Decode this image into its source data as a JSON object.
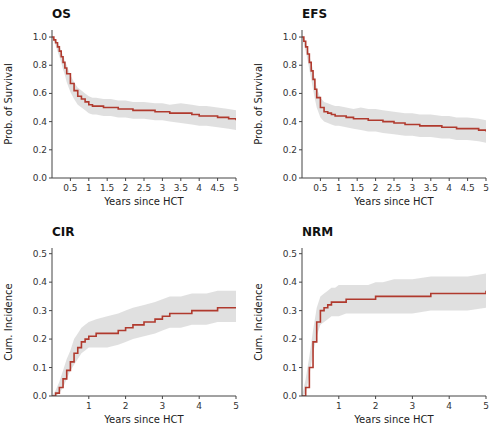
{
  "chart_data": [
    {
      "type": "step",
      "title": "OS",
      "xlabel": "Years since HCT",
      "ylabel": "Prob. of Survival",
      "color": "#b03a2e",
      "grid": false,
      "xlim": [
        0,
        5
      ],
      "ylim": [
        0.0,
        1.05
      ],
      "xticks": [
        0.5,
        1,
        1.5,
        2,
        2.5,
        3,
        3.5,
        4,
        4.5,
        5
      ],
      "yticks": [
        {
          "value": 0.0,
          "label": "0.0"
        },
        0.2,
        0.4,
        0.6,
        0.8,
        {
          "value": 1.0,
          "label": "1.0"
        }
      ],
      "x": [
        0,
        0.05,
        0.1,
        0.15,
        0.2,
        0.25,
        0.3,
        0.35,
        0.4,
        0.5,
        0.6,
        0.7,
        0.8,
        0.9,
        1.0,
        1.1,
        1.2,
        1.4,
        1.6,
        1.8,
        2.0,
        2.2,
        2.5,
        2.8,
        3.0,
        3.2,
        3.5,
        3.8,
        4.0,
        4.2,
        4.5,
        4.8,
        5.0
      ],
      "values": [
        1.0,
        0.98,
        0.96,
        0.93,
        0.9,
        0.86,
        0.82,
        0.78,
        0.74,
        0.67,
        0.62,
        0.58,
        0.56,
        0.54,
        0.52,
        0.51,
        0.51,
        0.5,
        0.5,
        0.49,
        0.49,
        0.48,
        0.48,
        0.47,
        0.47,
        0.46,
        0.46,
        0.45,
        0.44,
        0.44,
        0.43,
        0.42,
        0.41
      ],
      "ci_lo": [
        1.0,
        0.97,
        0.94,
        0.9,
        0.86,
        0.82,
        0.77,
        0.73,
        0.68,
        0.61,
        0.56,
        0.52,
        0.5,
        0.48,
        0.46,
        0.45,
        0.45,
        0.44,
        0.44,
        0.43,
        0.43,
        0.42,
        0.42,
        0.41,
        0.41,
        0.4,
        0.39,
        0.38,
        0.37,
        0.37,
        0.36,
        0.35,
        0.34
      ],
      "ci_hi": [
        1.0,
        0.99,
        0.98,
        0.96,
        0.94,
        0.9,
        0.87,
        0.83,
        0.8,
        0.73,
        0.68,
        0.64,
        0.62,
        0.6,
        0.58,
        0.57,
        0.57,
        0.56,
        0.56,
        0.55,
        0.55,
        0.54,
        0.54,
        0.53,
        0.53,
        0.52,
        0.53,
        0.52,
        0.51,
        0.51,
        0.5,
        0.49,
        0.48
      ]
    },
    {
      "type": "step",
      "title": "EFS",
      "xlabel": "Years since HCT",
      "ylabel": "Prob. of Survival",
      "color": "#b03a2e",
      "grid": false,
      "xlim": [
        0,
        5
      ],
      "ylim": [
        0.0,
        1.05
      ],
      "xticks": [
        0.5,
        1,
        1.5,
        2,
        2.5,
        3,
        3.5,
        4,
        4.5,
        5
      ],
      "yticks": [
        {
          "value": 0.0,
          "label": "0.0"
        },
        0.2,
        0.4,
        0.6,
        0.8,
        {
          "value": 1.0,
          "label": "1.0"
        }
      ],
      "x": [
        0,
        0.05,
        0.1,
        0.15,
        0.2,
        0.25,
        0.3,
        0.35,
        0.4,
        0.5,
        0.6,
        0.7,
        0.8,
        0.9,
        1.0,
        1.2,
        1.4,
        1.6,
        1.8,
        2.0,
        2.2,
        2.5,
        2.8,
        3.0,
        3.2,
        3.5,
        3.8,
        4.0,
        4.2,
        4.5,
        4.8,
        5.0
      ],
      "values": [
        1.0,
        0.97,
        0.93,
        0.88,
        0.82,
        0.76,
        0.7,
        0.63,
        0.57,
        0.5,
        0.47,
        0.46,
        0.45,
        0.44,
        0.44,
        0.43,
        0.42,
        0.42,
        0.41,
        0.41,
        0.4,
        0.39,
        0.38,
        0.38,
        0.37,
        0.37,
        0.36,
        0.36,
        0.35,
        0.35,
        0.34,
        0.33
      ],
      "ci_lo": [
        1.0,
        0.95,
        0.9,
        0.84,
        0.77,
        0.7,
        0.63,
        0.56,
        0.5,
        0.43,
        0.4,
        0.39,
        0.38,
        0.37,
        0.37,
        0.36,
        0.35,
        0.34,
        0.33,
        0.33,
        0.32,
        0.31,
        0.3,
        0.3,
        0.29,
        0.29,
        0.28,
        0.28,
        0.27,
        0.27,
        0.26,
        0.25
      ],
      "ci_hi": [
        1.0,
        0.99,
        0.96,
        0.92,
        0.87,
        0.82,
        0.77,
        0.7,
        0.64,
        0.57,
        0.54,
        0.53,
        0.52,
        0.51,
        0.51,
        0.5,
        0.49,
        0.5,
        0.49,
        0.49,
        0.48,
        0.47,
        0.46,
        0.46,
        0.45,
        0.45,
        0.44,
        0.44,
        0.43,
        0.43,
        0.42,
        0.41
      ]
    },
    {
      "type": "step",
      "title": "CIR",
      "xlabel": "Years since HCT",
      "ylabel": "Cum. Incidence",
      "color": "#b03a2e",
      "grid": false,
      "xlim": [
        0,
        5
      ],
      "ylim": [
        0.0,
        0.52
      ],
      "xticks": [
        1,
        2,
        3,
        4,
        5
      ],
      "yticks": [
        {
          "value": 0.0,
          "label": "0.0"
        },
        0.1,
        0.2,
        0.3,
        0.4,
        0.5
      ],
      "x": [
        0,
        0.1,
        0.2,
        0.3,
        0.4,
        0.5,
        0.6,
        0.7,
        0.8,
        0.9,
        1.0,
        1.2,
        1.5,
        1.8,
        2.0,
        2.2,
        2.5,
        2.8,
        3.0,
        3.2,
        3.5,
        3.8,
        4.0,
        4.2,
        4.5,
        5.0
      ],
      "values": [
        0.0,
        0.01,
        0.03,
        0.06,
        0.09,
        0.12,
        0.15,
        0.17,
        0.19,
        0.2,
        0.21,
        0.22,
        0.22,
        0.23,
        0.24,
        0.25,
        0.26,
        0.27,
        0.28,
        0.29,
        0.29,
        0.3,
        0.3,
        0.3,
        0.31,
        0.31
      ],
      "ci_lo": [
        0.0,
        0.0,
        0.01,
        0.03,
        0.06,
        0.09,
        0.11,
        0.13,
        0.15,
        0.16,
        0.17,
        0.17,
        0.17,
        0.18,
        0.19,
        0.2,
        0.21,
        0.22,
        0.23,
        0.24,
        0.24,
        0.25,
        0.25,
        0.25,
        0.26,
        0.26
      ],
      "ci_hi": [
        0.0,
        0.02,
        0.05,
        0.09,
        0.13,
        0.16,
        0.2,
        0.22,
        0.24,
        0.25,
        0.26,
        0.27,
        0.28,
        0.29,
        0.3,
        0.31,
        0.32,
        0.33,
        0.34,
        0.35,
        0.35,
        0.36,
        0.36,
        0.36,
        0.37,
        0.37
      ]
    },
    {
      "type": "step",
      "title": "NRM",
      "xlabel": "Years since HCT",
      "ylabel": "Cum. Incidence",
      "color": "#b03a2e",
      "grid": false,
      "xlim": [
        0,
        5
      ],
      "ylim": [
        0.0,
        0.52
      ],
      "xticks": [
        1,
        2,
        3,
        4,
        5
      ],
      "yticks": [
        {
          "value": 0.0,
          "label": "0.0"
        },
        0.1,
        0.2,
        0.3,
        0.4,
        0.5
      ],
      "x": [
        0,
        0.1,
        0.2,
        0.3,
        0.4,
        0.5,
        0.6,
        0.7,
        0.8,
        0.9,
        1.0,
        1.2,
        1.5,
        1.8,
        2.0,
        2.2,
        2.5,
        2.8,
        3.0,
        3.5,
        4.0,
        4.5,
        5.0
      ],
      "values": [
        0.0,
        0.03,
        0.1,
        0.19,
        0.26,
        0.3,
        0.31,
        0.32,
        0.33,
        0.33,
        0.33,
        0.34,
        0.34,
        0.34,
        0.35,
        0.35,
        0.35,
        0.35,
        0.35,
        0.36,
        0.36,
        0.36,
        0.37
      ],
      "ci_lo": [
        0.0,
        0.01,
        0.07,
        0.15,
        0.21,
        0.25,
        0.26,
        0.27,
        0.28,
        0.28,
        0.28,
        0.29,
        0.29,
        0.29,
        0.29,
        0.29,
        0.29,
        0.29,
        0.29,
        0.3,
        0.3,
        0.3,
        0.31
      ],
      "ci_hi": [
        0.0,
        0.06,
        0.14,
        0.23,
        0.31,
        0.35,
        0.36,
        0.37,
        0.38,
        0.38,
        0.39,
        0.39,
        0.39,
        0.39,
        0.4,
        0.4,
        0.41,
        0.41,
        0.41,
        0.42,
        0.42,
        0.42,
        0.43
      ]
    }
  ]
}
